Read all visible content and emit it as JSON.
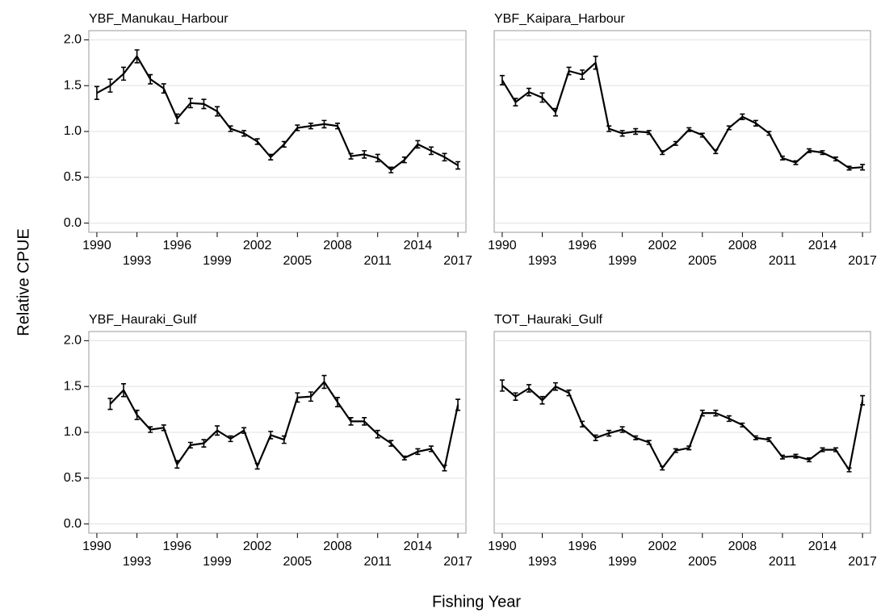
{
  "ylabel": "Relative CPUE",
  "xlabel": "Fishing Year",
  "chart_data": [
    {
      "type": "line",
      "title": "YBF_Manukau_Harbour",
      "color": "#000000",
      "grid": true,
      "ytick_labels": true,
      "x": [
        1990,
        1991,
        1992,
        1993,
        1994,
        1995,
        1996,
        1997,
        1998,
        1999,
        2000,
        2001,
        2002,
        2003,
        2004,
        2005,
        2006,
        2007,
        2008,
        2009,
        2010,
        2011,
        2012,
        2013,
        2014,
        2015,
        2016,
        2017
      ],
      "values": [
        1.42,
        1.5,
        1.63,
        1.82,
        1.57,
        1.47,
        1.14,
        1.31,
        1.3,
        1.22,
        1.03,
        0.98,
        0.89,
        0.72,
        0.86,
        1.04,
        1.06,
        1.08,
        1.06,
        0.73,
        0.75,
        0.71,
        0.58,
        0.69,
        0.86,
        0.79,
        0.72,
        0.63
      ],
      "errors": [
        0.07,
        0.07,
        0.07,
        0.07,
        0.05,
        0.05,
        0.05,
        0.05,
        0.05,
        0.05,
        0.03,
        0.03,
        0.03,
        0.03,
        0.03,
        0.03,
        0.03,
        0.04,
        0.03,
        0.03,
        0.04,
        0.04,
        0.03,
        0.03,
        0.04,
        0.04,
        0.04,
        0.04
      ],
      "xlim": [
        1989.4,
        2017.6
      ],
      "xticks": [
        1990,
        1993,
        1996,
        1999,
        2002,
        2005,
        2008,
        2011,
        2014,
        2017
      ],
      "ylim": [
        -0.1,
        2.1
      ],
      "yticks": [
        {
          "value": 0,
          "label": "0.0"
        },
        0.5,
        {
          "value": 1,
          "label": "1.0"
        },
        1.5,
        {
          "value": 2,
          "label": "2.0"
        }
      ]
    },
    {
      "type": "line",
      "title": "YBF_Kaipara_Harbour",
      "color": "#000000",
      "grid": true,
      "ytick_labels": false,
      "x": [
        1990,
        1991,
        1992,
        1993,
        1994,
        1995,
        1996,
        1997,
        1998,
        1999,
        2000,
        2001,
        2002,
        2003,
        2004,
        2005,
        2006,
        2007,
        2008,
        2009,
        2010,
        2011,
        2012,
        2013,
        2014,
        2015,
        2016,
        2017
      ],
      "values": [
        1.56,
        1.32,
        1.43,
        1.37,
        1.21,
        1.66,
        1.62,
        1.75,
        1.03,
        0.98,
        1.0,
        0.99,
        0.77,
        0.87,
        1.02,
        0.96,
        0.78,
        1.04,
        1.16,
        1.09,
        0.98,
        0.71,
        0.66,
        0.79,
        0.77,
        0.7,
        0.6,
        0.61
      ],
      "errors": [
        0.05,
        0.04,
        0.04,
        0.05,
        0.04,
        0.04,
        0.05,
        0.07,
        0.03,
        0.03,
        0.03,
        0.02,
        0.02,
        0.02,
        0.02,
        0.02,
        0.02,
        0.02,
        0.03,
        0.03,
        0.02,
        0.02,
        0.02,
        0.02,
        0.02,
        0.02,
        0.02,
        0.03
      ],
      "xlim": [
        1989.4,
        2017.6
      ],
      "xticks": [
        1990,
        1993,
        1996,
        1999,
        2002,
        2005,
        2008,
        2011,
        2014,
        2017
      ],
      "ylim": [
        -0.1,
        2.1
      ],
      "yticks": [
        0,
        0.5,
        1,
        1.5,
        2
      ]
    },
    {
      "type": "line",
      "title": "YBF_Hauraki_Gulf",
      "color": "#000000",
      "grid": true,
      "ytick_labels": true,
      "x": [
        1990,
        1991,
        1992,
        1993,
        1994,
        1995,
        1996,
        1997,
        1998,
        1999,
        2000,
        2001,
        2002,
        2003,
        2004,
        2005,
        2006,
        2007,
        2008,
        2009,
        2010,
        2011,
        2012,
        2013,
        2014,
        2015,
        2016,
        2017
      ],
      "values": [
        null,
        1.31,
        1.46,
        1.19,
        1.03,
        1.05,
        0.65,
        0.86,
        0.88,
        1.02,
        0.93,
        1.02,
        0.63,
        0.97,
        0.92,
        1.38,
        1.39,
        1.55,
        1.33,
        1.12,
        1.12,
        0.98,
        0.88,
        0.72,
        0.79,
        0.82,
        0.61,
        1.3
      ],
      "errors": [
        null,
        0.06,
        0.07,
        0.05,
        0.03,
        0.03,
        0.04,
        0.03,
        0.04,
        0.05,
        0.03,
        0.03,
        0.03,
        0.04,
        0.04,
        0.05,
        0.05,
        0.07,
        0.05,
        0.04,
        0.04,
        0.04,
        0.03,
        0.02,
        0.03,
        0.03,
        0.03,
        0.06
      ],
      "xlim": [
        1989.4,
        2017.6
      ],
      "xticks": [
        1990,
        1993,
        1996,
        1999,
        2002,
        2005,
        2008,
        2011,
        2014,
        2017
      ],
      "ylim": [
        -0.1,
        2.1
      ],
      "yticks": [
        {
          "value": 0,
          "label": "0.0"
        },
        0.5,
        {
          "value": 1,
          "label": "1.0"
        },
        1.5,
        {
          "value": 2,
          "label": "2.0"
        }
      ]
    },
    {
      "type": "line",
      "title": "TOT_Hauraki_Gulf",
      "color": "#000000",
      "grid": true,
      "ytick_labels": false,
      "x": [
        1990,
        1991,
        1992,
        1993,
        1994,
        1995,
        1996,
        1997,
        1998,
        1999,
        2000,
        2001,
        2002,
        2003,
        2004,
        2005,
        2006,
        2007,
        2008,
        2009,
        2010,
        2011,
        2012,
        2013,
        2014,
        2015,
        2016,
        2017
      ],
      "values": [
        1.51,
        1.39,
        1.48,
        1.35,
        1.5,
        1.43,
        1.09,
        0.94,
        0.99,
        1.03,
        0.94,
        0.89,
        0.61,
        0.8,
        0.83,
        1.21,
        1.21,
        1.15,
        1.08,
        0.94,
        0.92,
        0.73,
        0.74,
        0.7,
        0.81,
        0.81,
        0.59,
        1.35
      ],
      "errors": [
        0.06,
        0.04,
        0.04,
        0.04,
        0.04,
        0.03,
        0.03,
        0.03,
        0.03,
        0.03,
        0.02,
        0.02,
        0.02,
        0.02,
        0.02,
        0.03,
        0.03,
        0.03,
        0.02,
        0.02,
        0.02,
        0.02,
        0.02,
        0.02,
        0.02,
        0.02,
        0.02,
        0.05
      ],
      "xlim": [
        1989.4,
        2017.6
      ],
      "xticks": [
        1990,
        1993,
        1996,
        1999,
        2002,
        2005,
        2008,
        2011,
        2014,
        2017
      ],
      "ylim": [
        -0.1,
        2.1
      ],
      "yticks": [
        0,
        0.5,
        1,
        1.5,
        2
      ]
    }
  ]
}
